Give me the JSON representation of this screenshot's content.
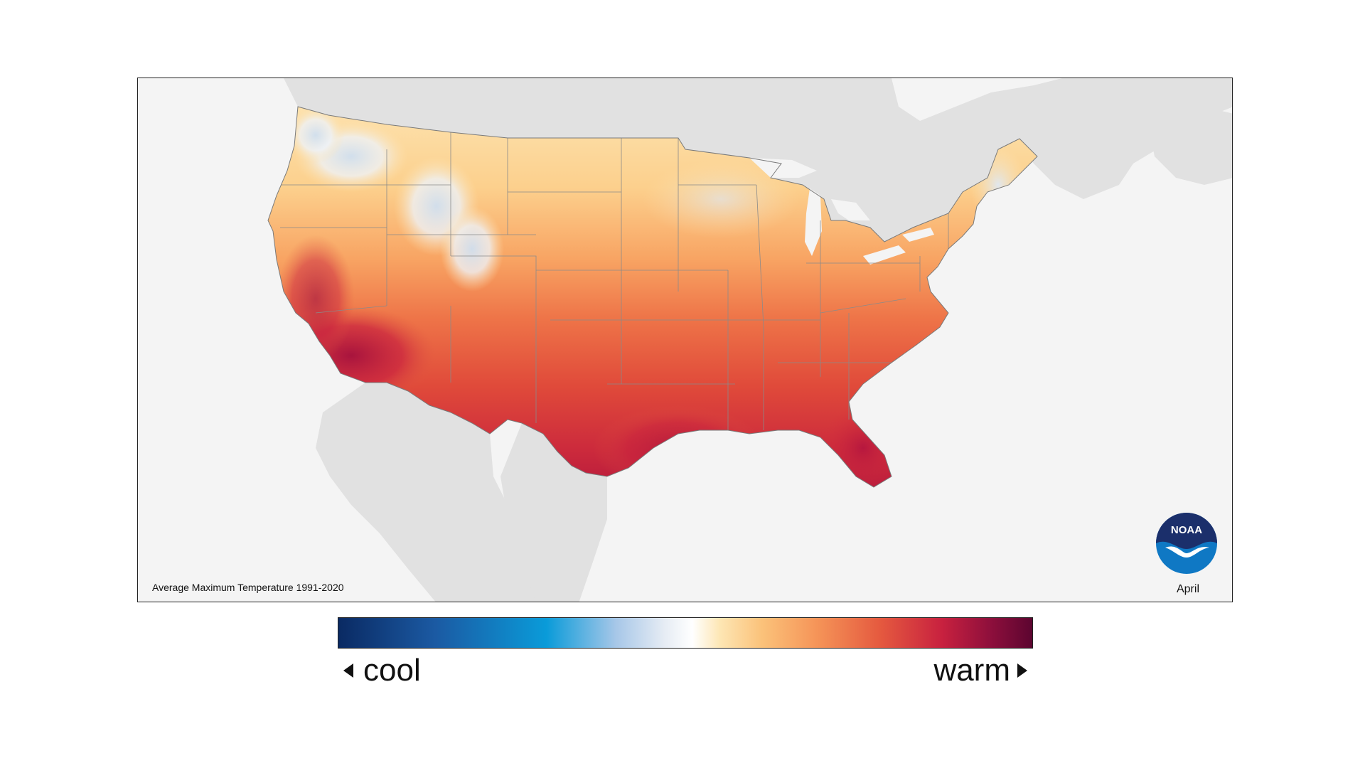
{
  "map": {
    "caption": "Average Maximum Temperature 1991-2020",
    "month": "April",
    "logo_text": "NOAA",
    "colors": {
      "background": "#f4f4f4",
      "neighbor_land": "#e1e1e1",
      "state_border": "#8a8a8a"
    }
  },
  "legend": {
    "cool_label": "cool",
    "warm_label": "warm",
    "colors": [
      "#0a2a63",
      "#1b5aa3",
      "#0a9bd9",
      "#a7c7e8",
      "#ffffff",
      "#fbc27a",
      "#f59458",
      "#e55a3f",
      "#c8213f",
      "#5c0530"
    ]
  }
}
